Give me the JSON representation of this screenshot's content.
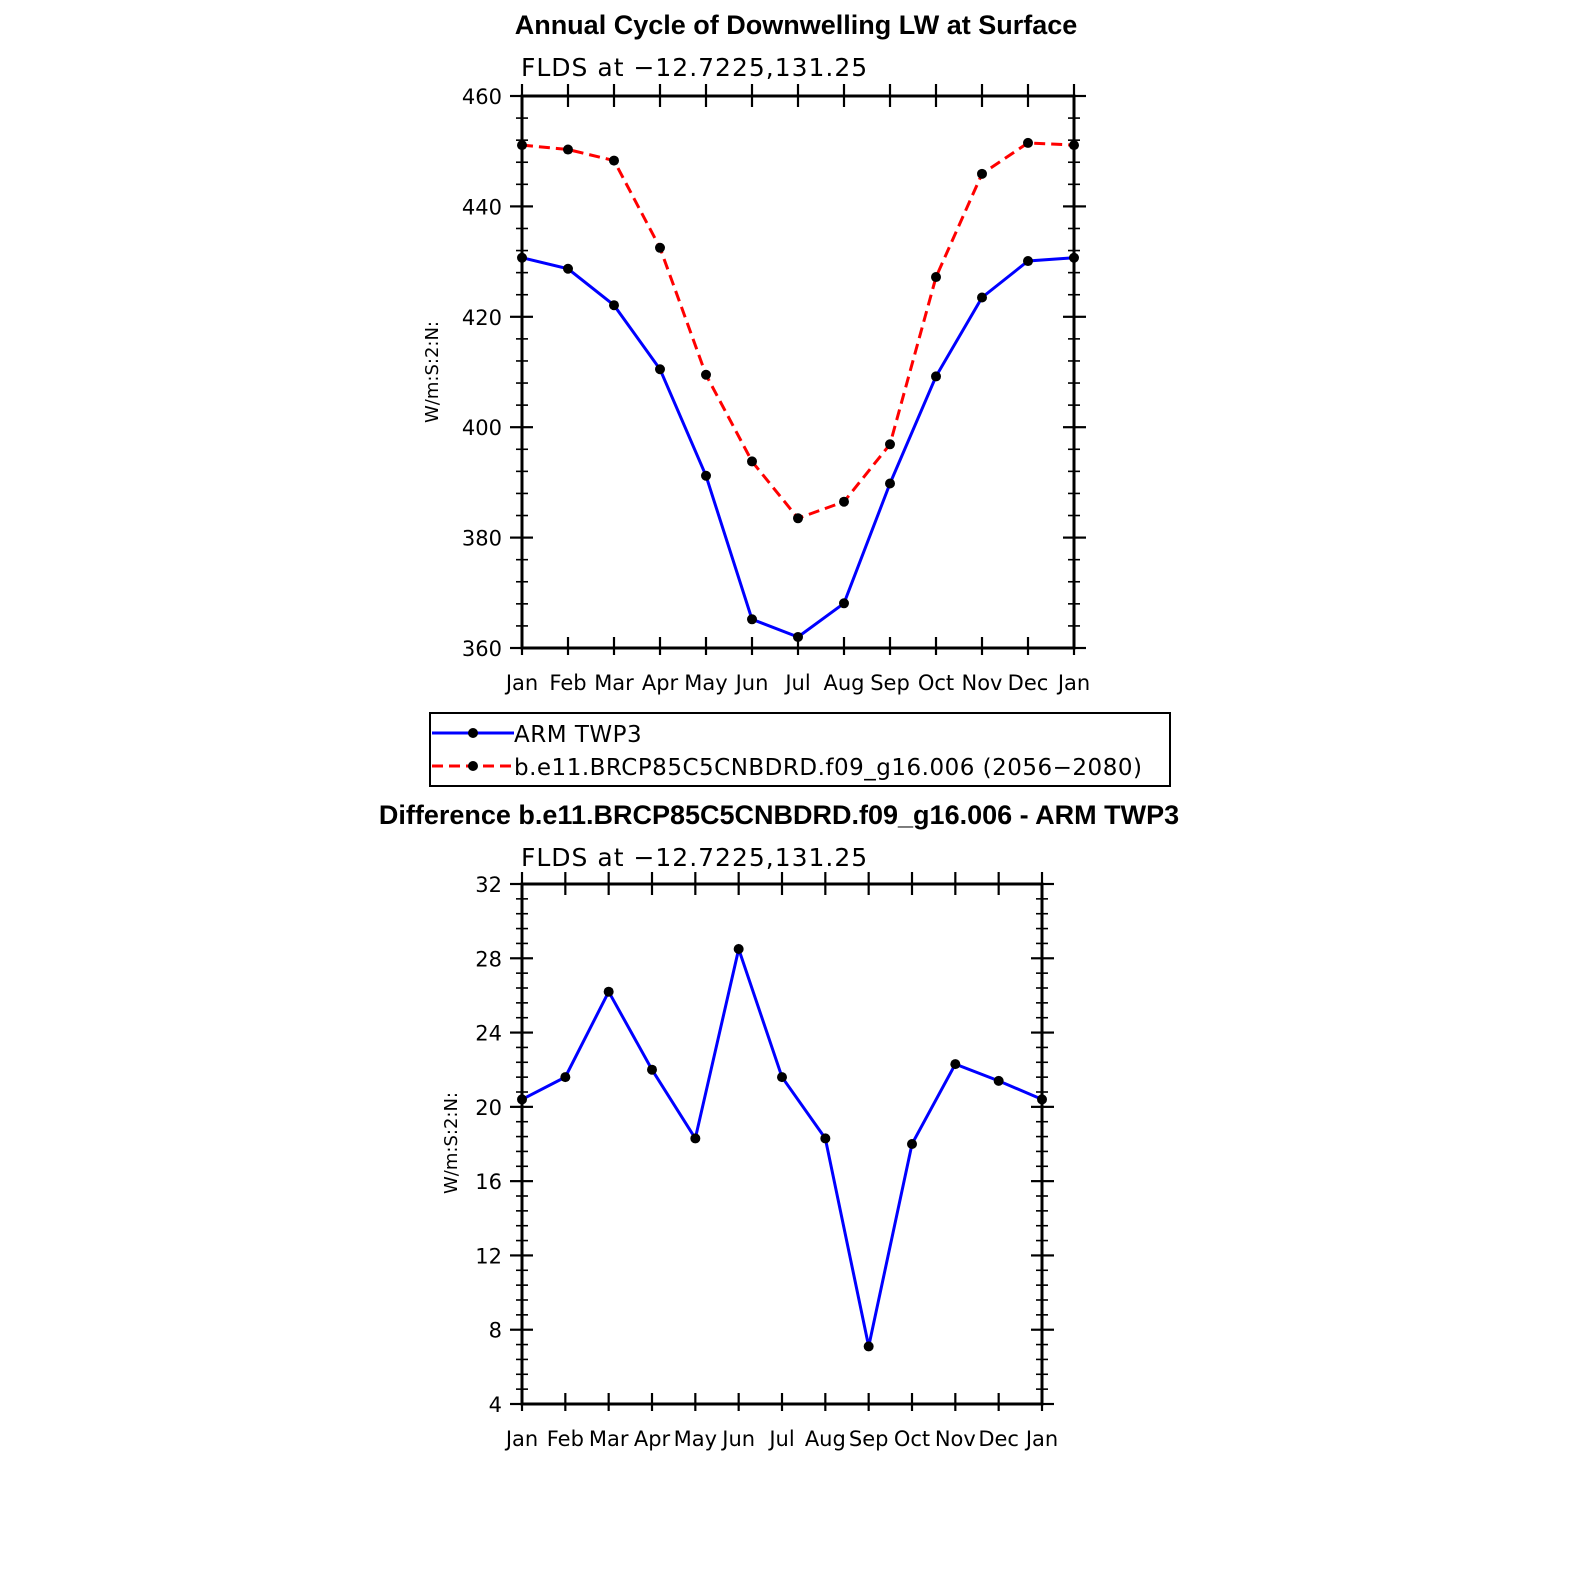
{
  "chart_data": [
    {
      "type": "line",
      "title": "Annual Cycle of Downwelling LW at Surface",
      "subtitle": "FLDS at −12.7225,131.25",
      "ylabel": "W/m:S:2:N:",
      "xlabel": "",
      "categories": [
        "Jan",
        "Feb",
        "Mar",
        "Apr",
        "May",
        "Jun",
        "Jul",
        "Aug",
        "Sep",
        "Oct",
        "Nov",
        "Dec",
        "Jan"
      ],
      "ylim": [
        360,
        460
      ],
      "yticks": [
        360,
        380,
        400,
        420,
        440,
        460
      ],
      "series": [
        {
          "name": "ARM TWP3",
          "color": "#0000ff",
          "dash": "solid",
          "values": [
            430.7,
            428.7,
            422.1,
            410.5,
            391.2,
            365.2,
            362.0,
            368.1,
            389.8,
            409.2,
            423.5,
            430.1,
            430.7
          ]
        },
        {
          "name": "b.e11.BRCP85C5CNBDRD.f09_g16.006 (2056−2080)",
          "color": "#ff0000",
          "dash": "dashed",
          "values": [
            451.1,
            450.3,
            448.3,
            432.5,
            409.5,
            393.8,
            383.5,
            386.5,
            396.9,
            427.2,
            445.9,
            451.5,
            451.1
          ]
        }
      ],
      "legend_position": "below"
    },
    {
      "type": "line",
      "title": "Difference b.e11.BRCP85C5CNBDRD.f09_g16.006 - ARM TWP3",
      "subtitle": "FLDS at −12.7225,131.25",
      "ylabel": "W/m:S:2:N:",
      "xlabel": "",
      "categories": [
        "Jan",
        "Feb",
        "Mar",
        "Apr",
        "May",
        "Jun",
        "Jul",
        "Aug",
        "Sep",
        "Oct",
        "Nov",
        "Dec",
        "Jan"
      ],
      "ylim": [
        4,
        32
      ],
      "yticks": [
        4,
        8,
        12,
        16,
        20,
        24,
        28,
        32
      ],
      "series": [
        {
          "name": "",
          "color": "#0000ff",
          "dash": "solid",
          "values": [
            20.4,
            21.6,
            26.2,
            22.0,
            18.3,
            28.5,
            21.6,
            18.3,
            7.1,
            18.0,
            22.3,
            21.4,
            20.4
          ]
        }
      ]
    }
  ]
}
